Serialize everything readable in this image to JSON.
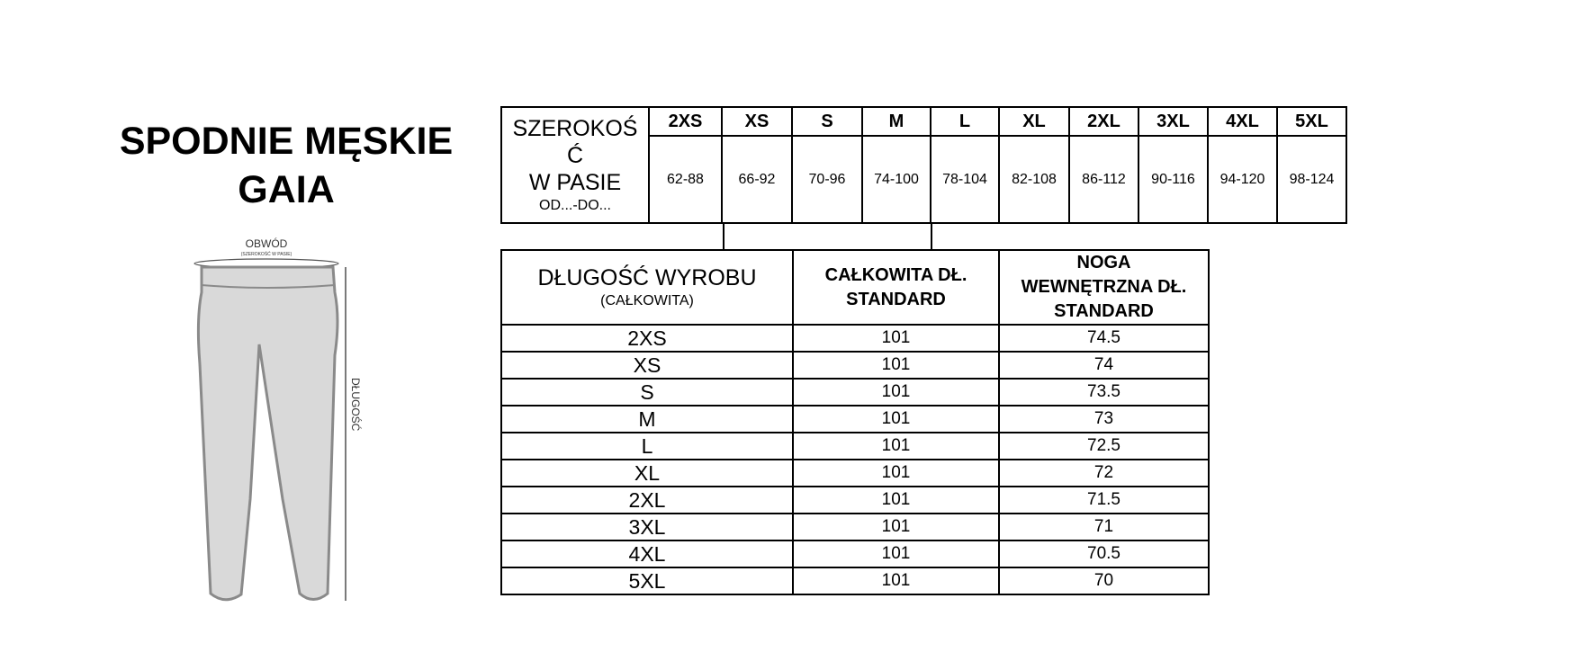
{
  "title": {
    "line1": "SPODNIE MĘSKIE",
    "line2": "GAIA"
  },
  "diagram": {
    "waist_label": "OBWÓD",
    "waist_sublabel": "(SZEROKOŚĆ W PASIE)",
    "length_label": "DŁUGOŚĆ",
    "fill_color": "#d9d9d9",
    "stroke_color": "#8a8a8a"
  },
  "waist_table": {
    "label_line1": "SZEROKOŚ",
    "label_line2": "Ć",
    "label_line3": "W PASIE",
    "label_sub": "OD...-DO...",
    "sizes": [
      "2XS",
      "XS",
      "S",
      "M",
      "L",
      "XL",
      "2XL",
      "3XL",
      "4XL",
      "5XL"
    ],
    "values": [
      "62-88",
      "66-92",
      "70-96",
      "74-100",
      "78-104",
      "82-108",
      "86-112",
      "90-116",
      "94-120",
      "98-124"
    ]
  },
  "length_table": {
    "col1_title": "DŁUGOŚĆ WYROBU",
    "col1_sub": "(CAŁKOWITA)",
    "col2_line1": "CAŁKOWITA DŁ.",
    "col2_line2": "STANDARD",
    "col3_line1": "NOGA",
    "col3_line2": "WEWNĘTRZNA DŁ.",
    "col3_line3": "STANDARD",
    "rows": [
      {
        "size": "2XS",
        "total": "101",
        "inseam": "74.5"
      },
      {
        "size": "XS",
        "total": "101",
        "inseam": "74"
      },
      {
        "size": "S",
        "total": "101",
        "inseam": "73.5"
      },
      {
        "size": "M",
        "total": "101",
        "inseam": "73"
      },
      {
        "size": "L",
        "total": "101",
        "inseam": "72.5"
      },
      {
        "size": "XL",
        "total": "101",
        "inseam": "72"
      },
      {
        "size": "2XL",
        "total": "101",
        "inseam": "71.5"
      },
      {
        "size": "3XL",
        "total": "101",
        "inseam": "71"
      },
      {
        "size": "4XL",
        "total": "101",
        "inseam": "70.5"
      },
      {
        "size": "5XL",
        "total": "101",
        "inseam": "70"
      }
    ]
  }
}
